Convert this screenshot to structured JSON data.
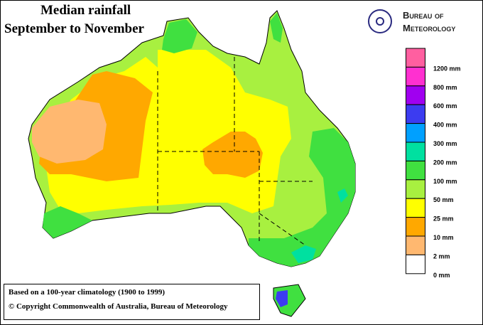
{
  "title": {
    "line1": "Median rainfall",
    "line2": "September to  November"
  },
  "logo": {
    "line1": "Bureau of",
    "line2": "Meteorology"
  },
  "legend": [
    {
      "label": "1200 mm",
      "color": "#ff5fa0"
    },
    {
      "label": "800 mm",
      "color": "#ff30d0"
    },
    {
      "label": "600 mm",
      "color": "#a000f0"
    },
    {
      "label": "400 mm",
      "color": "#3c3cf0"
    },
    {
      "label": "300 mm",
      "color": "#00a0ff"
    },
    {
      "label": "200 mm",
      "color": "#00e0a0"
    },
    {
      "label": "100 mm",
      "color": "#40e040"
    },
    {
      "label": "50 mm",
      "color": "#a8f040"
    },
    {
      "label": "25 mm",
      "color": "#ffff00"
    },
    {
      "label": "10 mm",
      "color": "#ffa800"
    },
    {
      "label": "2 mm",
      "color": "#ffb870"
    },
    {
      "label": "0 mm",
      "color": "#ffffff"
    }
  ],
  "footnote": {
    "line1": "Based on a 100-year climatology (1900 to 1999)",
    "line2": "© Copyright Commonwealth of Australia, Bureau of Meteorology"
  }
}
